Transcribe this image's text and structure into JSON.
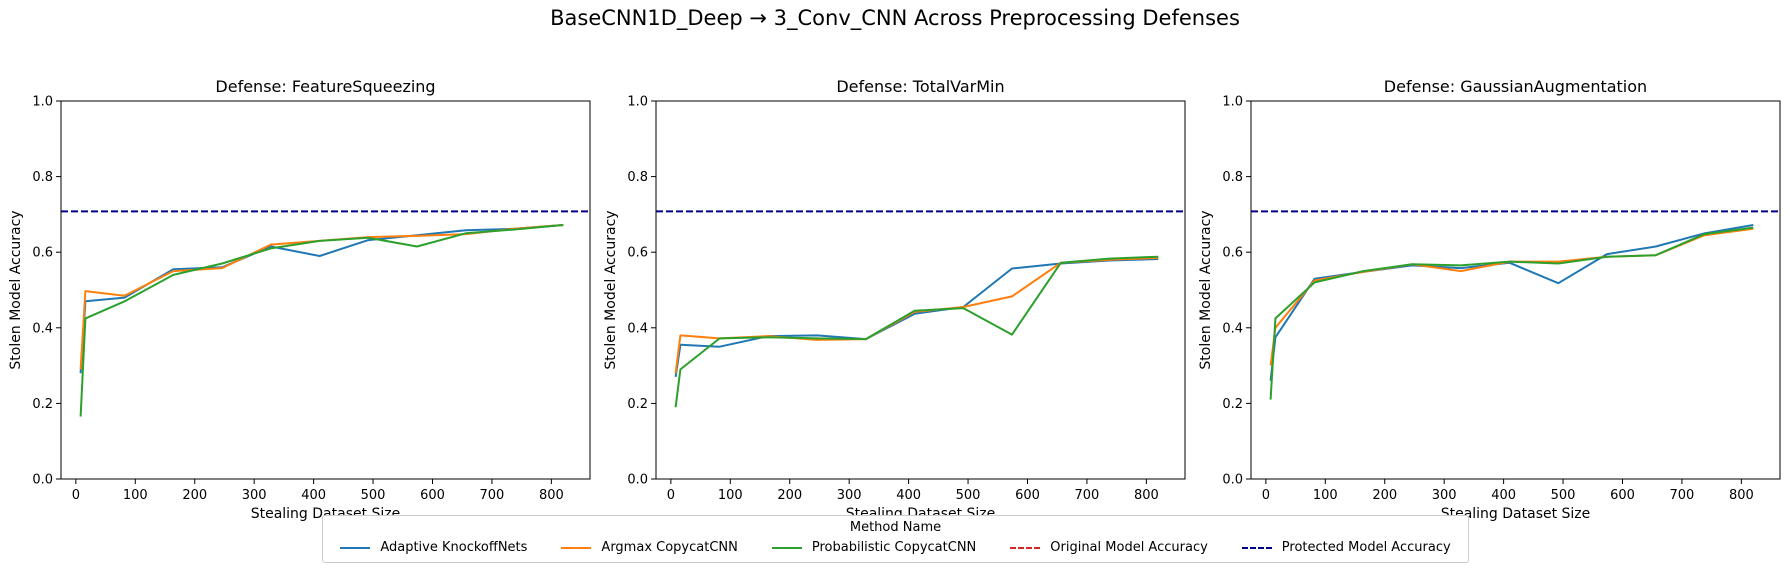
{
  "figure_title": "BaseCNN1D_Deep → 3_Conv_CNN Across Preprocessing Defenses",
  "colors": {
    "Adaptive KnockoffNets": "#1f77b4",
    "Argmax CopycatCNN": "#ff7f0e",
    "Probabilistic CopycatCNN": "#2ca02c",
    "Original Model Accuracy": "#d62728",
    "Protected Model Accuracy": "#00008b"
  },
  "legend": {
    "title": "Method Name",
    "entries": [
      {
        "label": "Adaptive KnockoffNets",
        "style": "solid",
        "color": "#1f77b4"
      },
      {
        "label": "Argmax CopycatCNN",
        "style": "solid",
        "color": "#ff7f0e"
      },
      {
        "label": "Probabilistic CopycatCNN",
        "style": "solid",
        "color": "#2ca02c"
      },
      {
        "label": "Original Model Accuracy",
        "style": "dashed",
        "color": "#d62728"
      },
      {
        "label": "Protected Model Accuracy",
        "style": "dashed",
        "color": "#00008b"
      }
    ]
  },
  "chart_data": [
    {
      "type": "line",
      "title": "Defense: FeatureSqueezing",
      "xlabel": "Stealing Dataset Size",
      "ylabel": "Stolen Model Accuracy",
      "xlim": [
        -25,
        865
      ],
      "ylim": [
        0,
        1
      ],
      "xticks": [
        0,
        100,
        200,
        300,
        400,
        500,
        600,
        700,
        800
      ],
      "yticks": [
        "0.0",
        "0.2",
        "0.4",
        "0.6",
        "0.8",
        "1.0"
      ],
      "hlines": [
        {
          "name": "Protected Model Accuracy",
          "y": 0.708,
          "style": "dashed"
        }
      ],
      "series": [
        {
          "name": "Adaptive KnockoffNets",
          "x": [
            8,
            16,
            82,
            164,
            246,
            328,
            410,
            492,
            574,
            656,
            738,
            820
          ],
          "y": [
            0.28,
            0.47,
            0.48,
            0.555,
            0.56,
            0.615,
            0.59,
            0.632,
            0.645,
            0.658,
            0.662,
            0.672
          ]
        },
        {
          "name": "Argmax CopycatCNN",
          "x": [
            8,
            16,
            82,
            164,
            246,
            328,
            410,
            492,
            574,
            656,
            738,
            820
          ],
          "y": [
            0.29,
            0.497,
            0.485,
            0.55,
            0.558,
            0.62,
            0.63,
            0.64,
            0.643,
            0.648,
            0.662,
            0.672
          ]
        },
        {
          "name": "Probabilistic CopycatCNN",
          "x": [
            8,
            16,
            82,
            164,
            246,
            328,
            410,
            492,
            574,
            656,
            738,
            820
          ],
          "y": [
            0.165,
            0.425,
            0.47,
            0.54,
            0.57,
            0.61,
            0.63,
            0.638,
            0.615,
            0.65,
            0.66,
            0.672
          ]
        }
      ]
    },
    {
      "type": "line",
      "title": "Defense: TotalVarMin",
      "xlabel": "Stealing Dataset Size",
      "ylabel": "Stolen Model Accuracy",
      "xlim": [
        -25,
        865
      ],
      "ylim": [
        0,
        1
      ],
      "xticks": [
        0,
        100,
        200,
        300,
        400,
        500,
        600,
        700,
        800
      ],
      "yticks": [
        "0.0",
        "0.2",
        "0.4",
        "0.6",
        "0.8",
        "1.0"
      ],
      "hlines": [
        {
          "name": "Protected Model Accuracy",
          "y": 0.708,
          "style": "dashed"
        }
      ],
      "series": [
        {
          "name": "Adaptive KnockoffNets",
          "x": [
            8,
            16,
            82,
            164,
            246,
            328,
            410,
            492,
            574,
            656,
            738,
            820
          ],
          "y": [
            0.27,
            0.355,
            0.35,
            0.378,
            0.38,
            0.37,
            0.437,
            0.455,
            0.557,
            0.57,
            0.578,
            0.582
          ]
        },
        {
          "name": "Argmax CopycatCNN",
          "x": [
            8,
            16,
            82,
            164,
            246,
            328,
            410,
            492,
            574,
            656,
            738,
            820
          ],
          "y": [
            0.28,
            0.38,
            0.372,
            0.378,
            0.368,
            0.37,
            0.442,
            0.455,
            0.483,
            0.572,
            0.58,
            0.585
          ]
        },
        {
          "name": "Probabilistic CopycatCNN",
          "x": [
            8,
            16,
            82,
            164,
            246,
            328,
            410,
            492,
            574,
            656,
            738,
            820
          ],
          "y": [
            0.19,
            0.29,
            0.372,
            0.375,
            0.372,
            0.37,
            0.445,
            0.452,
            0.382,
            0.572,
            0.583,
            0.588
          ]
        }
      ]
    },
    {
      "type": "line",
      "title": "Defense: GaussianAugmentation",
      "xlabel": "Stealing Dataset Size",
      "ylabel": "Stolen Model Accuracy",
      "xlim": [
        -25,
        865
      ],
      "ylim": [
        0,
        1
      ],
      "xticks": [
        0,
        100,
        200,
        300,
        400,
        500,
        600,
        700,
        800
      ],
      "yticks": [
        "0.0",
        "0.2",
        "0.4",
        "0.6",
        "0.8",
        "1.0"
      ],
      "hlines": [
        {
          "name": "Protected Model Accuracy",
          "y": 0.708,
          "style": "dashed"
        }
      ],
      "series": [
        {
          "name": "Adaptive KnockoffNets",
          "x": [
            8,
            16,
            82,
            164,
            246,
            328,
            410,
            492,
            574,
            656,
            738,
            820
          ],
          "y": [
            0.26,
            0.375,
            0.53,
            0.548,
            0.565,
            0.558,
            0.572,
            0.518,
            0.595,
            0.615,
            0.65,
            0.672
          ]
        },
        {
          "name": "Argmax CopycatCNN",
          "x": [
            8,
            16,
            82,
            164,
            246,
            328,
            410,
            492,
            574,
            656,
            738,
            820
          ],
          "y": [
            0.3,
            0.4,
            0.525,
            0.548,
            0.568,
            0.55,
            0.575,
            0.575,
            0.588,
            0.592,
            0.645,
            0.662
          ]
        },
        {
          "name": "Probabilistic CopycatCNN",
          "x": [
            8,
            16,
            82,
            164,
            246,
            328,
            410,
            492,
            574,
            656,
            738,
            820
          ],
          "y": [
            0.21,
            0.425,
            0.52,
            0.55,
            0.568,
            0.565,
            0.575,
            0.57,
            0.588,
            0.592,
            0.648,
            0.665
          ]
        }
      ]
    }
  ]
}
